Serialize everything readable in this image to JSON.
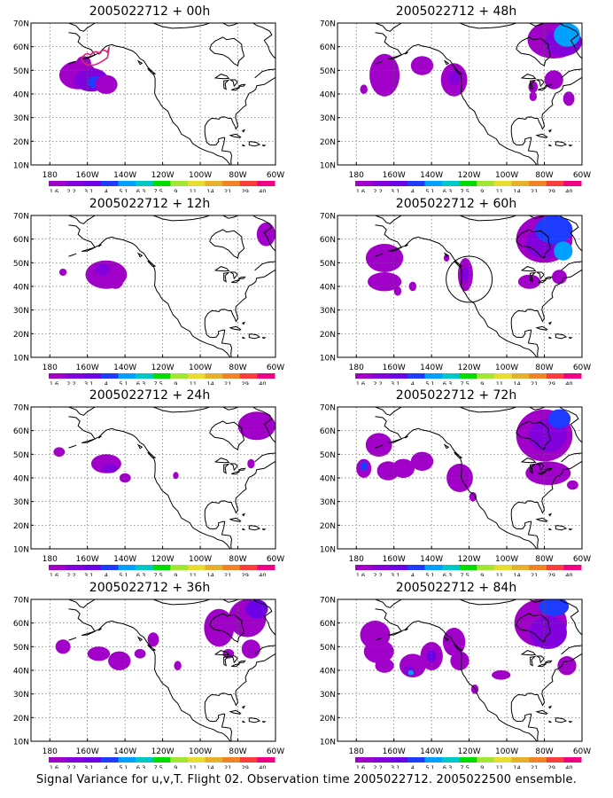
{
  "panels": [
    {
      "title": "2005022712 + 00h"
    },
    {
      "title": "2005022712 + 48h"
    },
    {
      "title": "2005022712 + 12h"
    },
    {
      "title": "2005022712 + 60h"
    },
    {
      "title": "2005022712 + 24h"
    },
    {
      "title": "2005022712 + 72h"
    },
    {
      "title": "2005022712 + 36h"
    },
    {
      "title": "2005022712 + 84h"
    }
  ],
  "axes": {
    "lon_labels": [
      "180",
      "160W",
      "140W",
      "120W",
      "100W",
      "80W",
      "60W"
    ],
    "lat_labels": [
      "10N",
      "20N",
      "30N",
      "40N",
      "50N",
      "60N",
      "70N"
    ]
  },
  "colorbar": {
    "labels": [
      "1.6",
      "2.2",
      "3.1",
      "4",
      "5.1",
      "6.3",
      "7.5",
      "9",
      "11",
      "14",
      "21",
      "29",
      "40"
    ],
    "colors": [
      "#a000c8",
      "#8200dc",
      "#6e00e6",
      "#1e3cff",
      "#00a0ff",
      "#00c8c8",
      "#00dc00",
      "#a0e632",
      "#e6dc32",
      "#e6af2d",
      "#f08228",
      "#fa3c3c",
      "#f00082"
    ]
  },
  "caption": "Signal Variance for u,v,T. Flight 02. Observation time 2005022712. 2005022500 ensemble."
}
